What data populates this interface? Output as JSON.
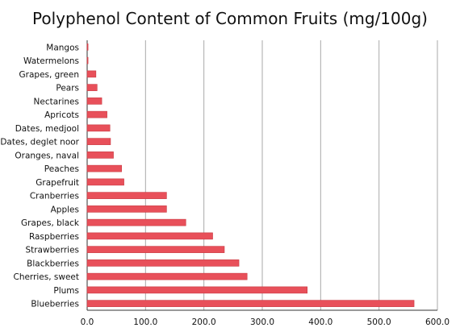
{
  "chart_data": {
    "type": "bar",
    "orientation": "horizontal",
    "title": "Polyphenol Content of Common Fruits (mg/100g)",
    "categories": [
      "Mangos",
      "Watermelons",
      "Grapes, green",
      "Pears",
      "Nectarines",
      "Apricots",
      "Dates, medjool",
      "Dates, deglet noor",
      "Oranges, naval",
      "Peaches",
      "Grapefruit",
      "Cranberries",
      "Apples",
      "Grapes, black",
      "Raspberries",
      "Strawberries",
      "Blackberries",
      "Cherries, sweet",
      "Plums",
      "Blueberries"
    ],
    "values": [
      1.5,
      1.5,
      15,
      17,
      25,
      34,
      39,
      40,
      45,
      59,
      63,
      136,
      136,
      169,
      215,
      235,
      260,
      274,
      377,
      560
    ],
    "xlim": [
      0,
      600
    ],
    "xticks": [
      0,
      100,
      200,
      300,
      400,
      500,
      600
    ],
    "xtick_labels": [
      "0.0",
      "100.0",
      "200.0",
      "300.0",
      "400.0",
      "500.0",
      "600.0"
    ],
    "grid": "vertical",
    "legend": "none",
    "colors": {
      "bar": "#e8505a",
      "bar_edge": "#c93840",
      "grid": "#aaaaaa",
      "axis": "#333333",
      "text": "#111111"
    }
  }
}
